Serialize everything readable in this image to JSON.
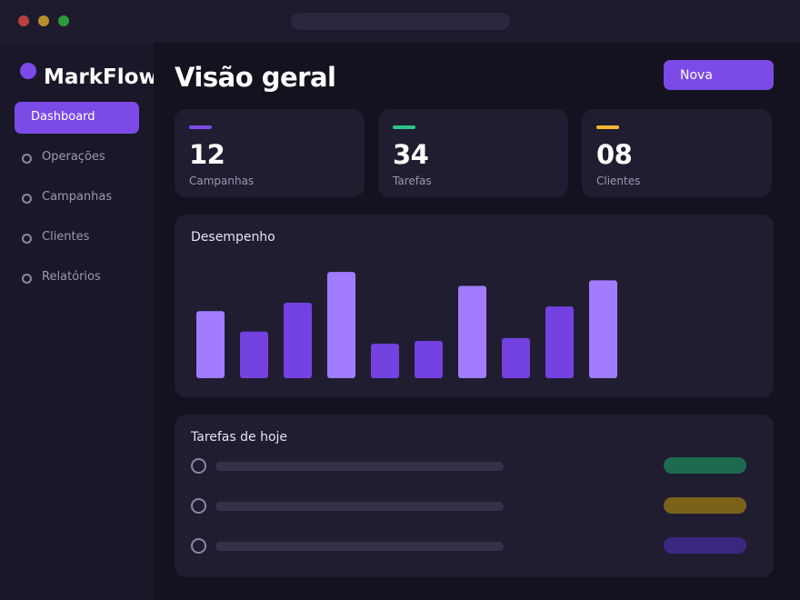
{
  "app": {
    "name": "MarkFlow",
    "brand_color": "#7c4ae6"
  },
  "window": {
    "controls": [
      "close",
      "minimize",
      "maximize"
    ]
  },
  "sidebar": {
    "items": [
      {
        "label": "Dashboard",
        "active": true
      },
      {
        "label": "Operações",
        "active": false
      },
      {
        "label": "Campanhas",
        "active": false
      },
      {
        "label": "Clientes",
        "active": false
      },
      {
        "label": "Relatórios",
        "active": false
      }
    ]
  },
  "header": {
    "title": "Visão geral",
    "new_button_label": "Nova"
  },
  "stats": [
    {
      "value": "12",
      "label": "Campanhas",
      "accent": "#7c4ae6"
    },
    {
      "value": "34",
      "label": "Tarefas",
      "accent": "#2bc48a"
    },
    {
      "value": "08",
      "label": "Clientes",
      "accent": "#f2b632"
    }
  ],
  "performance": {
    "title": "Desempenho",
    "colors": {
      "light": "#a17cff",
      "dark": "#7442e0"
    }
  },
  "chart_data": {
    "type": "bar",
    "categories": [
      "",
      "",
      "",
      "",
      "",
      "",
      "",
      "",
      "",
      ""
    ],
    "values": [
      72,
      50,
      81,
      114,
      37,
      40,
      99,
      43,
      77,
      105
    ],
    "shades": [
      "light",
      "dark",
      "dark",
      "light",
      "dark",
      "dark",
      "light",
      "dark",
      "dark",
      "light"
    ],
    "ylim": [
      0,
      120
    ],
    "title": "Desempenho",
    "xlabel": "",
    "ylabel": ""
  },
  "tasks": {
    "title": "Tarefas de hoje",
    "items": [
      {
        "tag_color": "#1d6a4f"
      },
      {
        "tag_color": "#7a6219"
      },
      {
        "tag_color": "#3b2680"
      }
    ]
  }
}
